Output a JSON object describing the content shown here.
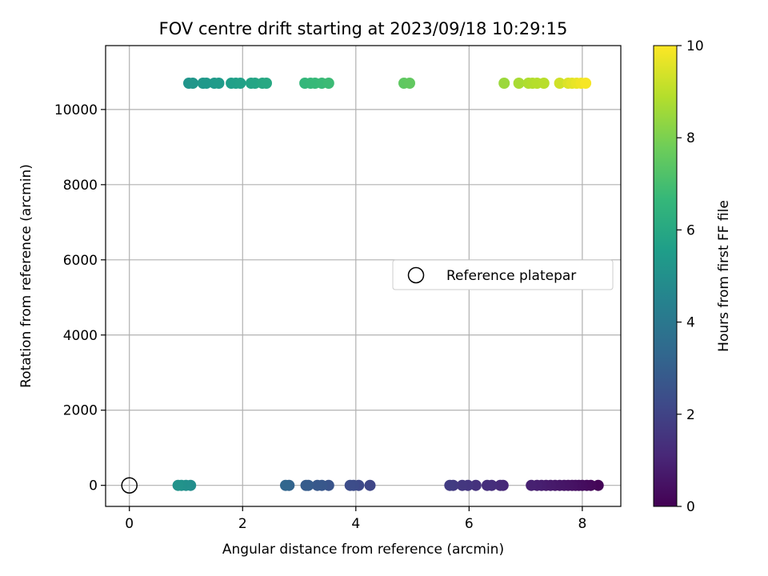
{
  "chart_data": {
    "type": "scatter",
    "title": "FOV centre drift starting at 2023/09/18 10:29:15",
    "xlabel": "Angular distance from reference (arcmin)",
    "ylabel": "Rotation from reference (arcmin)",
    "xlim": [
      -0.42,
      8.68
    ],
    "ylim": [
      -560,
      11700
    ],
    "xticks": [
      0,
      2,
      4,
      6,
      8
    ],
    "yticks": [
      0,
      2000,
      4000,
      6000,
      8000,
      10000
    ],
    "grid": true,
    "colormap": "viridis",
    "colorbar": {
      "label": "Hours from first FF file",
      "range": [
        0,
        10
      ],
      "ticks": [
        0,
        2,
        4,
        6,
        8,
        10
      ]
    },
    "legend": {
      "placement": "center-right",
      "entries": [
        "Reference platepar"
      ]
    },
    "reference_point": {
      "x": 0,
      "y": 0
    },
    "points": [
      {
        "x": 8.28,
        "y": 0,
        "c": 0.1
      },
      {
        "x": 8.15,
        "y": 0,
        "c": 0.2
      },
      {
        "x": 8.08,
        "y": 0,
        "c": 0.25
      },
      {
        "x": 8.0,
        "y": 0,
        "c": 0.3
      },
      {
        "x": 7.94,
        "y": 0,
        "c": 0.35
      },
      {
        "x": 7.88,
        "y": 0,
        "c": 0.4
      },
      {
        "x": 7.82,
        "y": 0,
        "c": 0.45
      },
      {
        "x": 7.75,
        "y": 0,
        "c": 0.5
      },
      {
        "x": 7.68,
        "y": 0,
        "c": 0.55
      },
      {
        "x": 7.6,
        "y": 0,
        "c": 0.6
      },
      {
        "x": 7.52,
        "y": 0,
        "c": 0.65
      },
      {
        "x": 7.44,
        "y": 0,
        "c": 0.7
      },
      {
        "x": 7.36,
        "y": 0,
        "c": 0.75
      },
      {
        "x": 7.28,
        "y": 0,
        "c": 0.8
      },
      {
        "x": 7.2,
        "y": 0,
        "c": 0.85
      },
      {
        "x": 7.1,
        "y": 0,
        "c": 0.9
      },
      {
        "x": 6.6,
        "y": 0,
        "c": 1.1
      },
      {
        "x": 6.55,
        "y": 0,
        "c": 1.2
      },
      {
        "x": 6.4,
        "y": 0,
        "c": 1.3
      },
      {
        "x": 6.32,
        "y": 0,
        "c": 1.35
      },
      {
        "x": 6.12,
        "y": 0,
        "c": 1.45
      },
      {
        "x": 5.98,
        "y": 0,
        "c": 1.55
      },
      {
        "x": 5.88,
        "y": 0,
        "c": 1.6
      },
      {
        "x": 5.72,
        "y": 0,
        "c": 1.7
      },
      {
        "x": 5.66,
        "y": 0,
        "c": 1.75
      },
      {
        "x": 4.25,
        "y": 0,
        "c": 2.1
      },
      {
        "x": 4.05,
        "y": 0,
        "c": 2.2
      },
      {
        "x": 3.96,
        "y": 0,
        "c": 2.3
      },
      {
        "x": 3.9,
        "y": 0,
        "c": 2.35
      },
      {
        "x": 3.52,
        "y": 0,
        "c": 2.6
      },
      {
        "x": 3.4,
        "y": 0,
        "c": 2.7
      },
      {
        "x": 3.32,
        "y": 0,
        "c": 2.75
      },
      {
        "x": 3.16,
        "y": 0,
        "c": 2.85
      },
      {
        "x": 3.12,
        "y": 0,
        "c": 2.9
      },
      {
        "x": 2.82,
        "y": 0,
        "c": 3.2
      },
      {
        "x": 2.76,
        "y": 0,
        "c": 3.3
      },
      {
        "x": 1.08,
        "y": 0,
        "c": 4.9
      },
      {
        "x": 1.0,
        "y": 0,
        "c": 5.0
      },
      {
        "x": 0.92,
        "y": 0,
        "c": 5.05
      },
      {
        "x": 0.86,
        "y": 0,
        "c": 5.1
      },
      {
        "x": 1.05,
        "y": 10700,
        "c": 5.2
      },
      {
        "x": 1.12,
        "y": 10700,
        "c": 5.25
      },
      {
        "x": 1.3,
        "y": 10700,
        "c": 5.3
      },
      {
        "x": 1.36,
        "y": 10700,
        "c": 5.35
      },
      {
        "x": 1.5,
        "y": 10700,
        "c": 5.4
      },
      {
        "x": 1.58,
        "y": 10700,
        "c": 5.45
      },
      {
        "x": 1.8,
        "y": 10700,
        "c": 5.6
      },
      {
        "x": 1.88,
        "y": 10700,
        "c": 5.65
      },
      {
        "x": 1.96,
        "y": 10700,
        "c": 5.7
      },
      {
        "x": 2.15,
        "y": 10700,
        "c": 5.8
      },
      {
        "x": 2.22,
        "y": 10700,
        "c": 5.85
      },
      {
        "x": 2.35,
        "y": 10700,
        "c": 5.95
      },
      {
        "x": 2.42,
        "y": 10700,
        "c": 6.0
      },
      {
        "x": 3.1,
        "y": 10700,
        "c": 6.6
      },
      {
        "x": 3.2,
        "y": 10700,
        "c": 6.65
      },
      {
        "x": 3.28,
        "y": 10700,
        "c": 6.7
      },
      {
        "x": 3.4,
        "y": 10700,
        "c": 6.75
      },
      {
        "x": 3.52,
        "y": 10700,
        "c": 6.8
      },
      {
        "x": 4.85,
        "y": 10700,
        "c": 7.5
      },
      {
        "x": 4.95,
        "y": 10700,
        "c": 7.55
      },
      {
        "x": 6.62,
        "y": 10700,
        "c": 8.5
      },
      {
        "x": 6.88,
        "y": 10700,
        "c": 8.7
      },
      {
        "x": 7.05,
        "y": 10700,
        "c": 8.8
      },
      {
        "x": 7.12,
        "y": 10700,
        "c": 8.85
      },
      {
        "x": 7.2,
        "y": 10700,
        "c": 8.9
      },
      {
        "x": 7.32,
        "y": 10700,
        "c": 8.95
      },
      {
        "x": 7.6,
        "y": 10700,
        "c": 9.3
      },
      {
        "x": 7.75,
        "y": 10700,
        "c": 9.5
      },
      {
        "x": 7.82,
        "y": 10700,
        "c": 9.6
      },
      {
        "x": 7.9,
        "y": 10700,
        "c": 9.7
      },
      {
        "x": 7.98,
        "y": 10700,
        "c": 9.8
      },
      {
        "x": 8.06,
        "y": 10700,
        "c": 9.9
      }
    ]
  }
}
